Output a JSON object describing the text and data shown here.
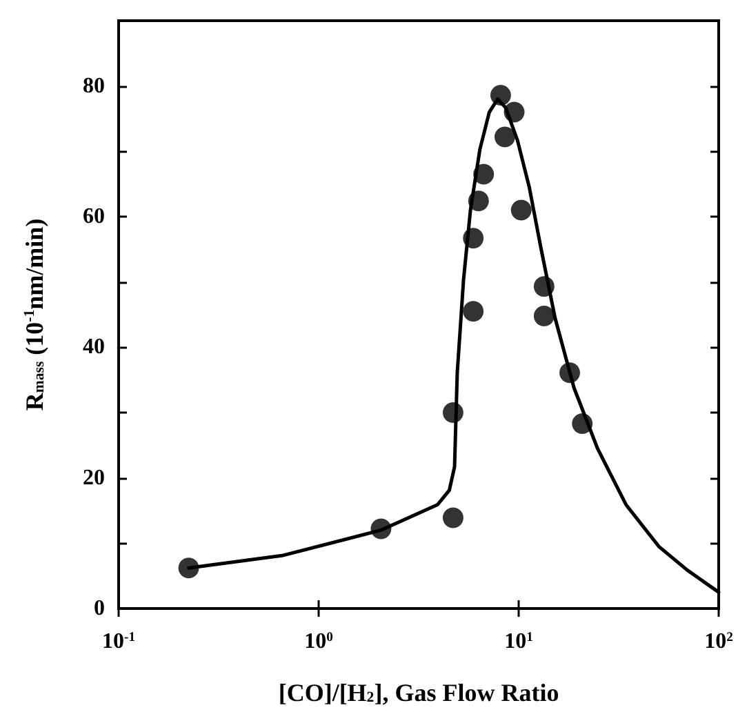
{
  "chart_data": {
    "type": "scatter",
    "xlabel": "[CO]/[H$_{2}$], Gas Flow Ratio",
    "ylabel": "R$_{mass}$ (10$^{-1}$nm/min)",
    "log": "x",
    "xlim": [
      0.1,
      100
    ],
    "xticks": [
      {
        "value": 0.1,
        "label": "10$^{-1}$"
      },
      {
        "value": 1,
        "label": "10$^{0}$"
      },
      {
        "value": 10,
        "label": "10$^{1}$"
      },
      {
        "value": 100,
        "label": "10$^{2}$"
      }
    ],
    "ylim": [
      0,
      90
    ],
    "yticks": [
      0,
      {
        "value": 10,
        "label": null
      },
      20,
      {
        "value": 30,
        "label": null
      },
      40,
      {
        "value": 50,
        "label": null
      },
      60,
      {
        "value": 70,
        "label": null
      },
      80
    ],
    "grid": false,
    "series": [
      {
        "marker": "circle",
        "color": "#000000",
        "x": [
          0.224,
          2.05,
          4.7,
          4.7,
          5.93,
          5.93,
          6.3,
          6.68,
          8.13,
          9.5,
          8.53,
          10.3,
          13.4,
          13.4,
          18.0,
          20.8
        ],
        "values": [
          6.2,
          12.2,
          13.9,
          30.0,
          45.5,
          56.7,
          62.4,
          66.5,
          78.6,
          76.0,
          72.2,
          61.0,
          49.3,
          44.8,
          36.1,
          28.3
        ]
      },
      {
        "type": "line",
        "marker": "none",
        "line_style": "solid",
        "color": "#000000",
        "x": [
          0.224,
          0.656,
          2.05,
          3.93,
          4.5,
          4.78,
          4.93,
          5.3,
          5.74,
          6.4,
          7.13,
          7.85,
          8.6,
          9.86,
          11.3,
          12.9,
          15.2,
          18.9,
          24.8,
          34.4,
          50.2,
          69.5,
          100
        ],
        "values": [
          6.2,
          8.1,
          12.0,
          15.9,
          18.1,
          21.7,
          36.0,
          50.3,
          61.0,
          70.3,
          76.0,
          78.0,
          76.7,
          71.7,
          64.5,
          55.3,
          44.5,
          33.8,
          24.5,
          15.9,
          9.5,
          5.9,
          2.5
        ]
      }
    ]
  }
}
